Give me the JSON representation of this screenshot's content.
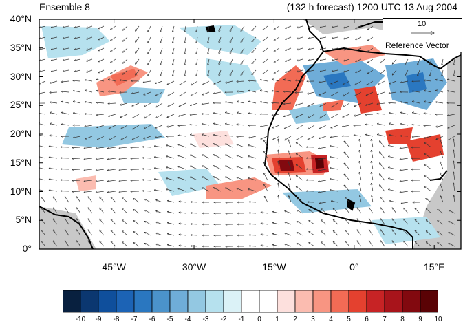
{
  "header": {
    "left_title": "Ensemble 8",
    "right_title": "(132 h forecast) 1200 UTC 13 Aug 2004"
  },
  "axes": {
    "lat_labels": [
      "40°N",
      "35°N",
      "30°N",
      "25°N",
      "20°N",
      "15°N",
      "10°N",
      "5°N",
      "0°"
    ],
    "lat_values": [
      40,
      35,
      30,
      25,
      20,
      15,
      10,
      5,
      0
    ],
    "lon_labels": [
      "45°W",
      "30°W",
      "15°W",
      "0°",
      "15°E"
    ],
    "lon_values": [
      -45,
      -30,
      -15,
      0,
      15
    ],
    "lon_range": [
      -59,
      20
    ],
    "lat_range": [
      0,
      40
    ]
  },
  "reference_vector": {
    "magnitude": "10",
    "label": "Reference Vector"
  },
  "colorbar": {
    "labels": [
      "-10",
      "-9",
      "-8",
      "-7",
      "-6",
      "-5",
      "-4",
      "-3",
      "-2",
      "-1",
      "0",
      "1",
      "2",
      "3",
      "4",
      "5",
      "6",
      "7",
      "8",
      "9",
      "10"
    ],
    "colors": [
      "#08203f",
      "#0b3770",
      "#0f4f9c",
      "#1c63b5",
      "#2a77c0",
      "#4b93cb",
      "#6fadd8",
      "#93c8e2",
      "#b6e1ee",
      "#dbf2f7",
      "#ffffff",
      "#ffffff",
      "#fde0dd",
      "#fbbcb0",
      "#f89582",
      "#f26b55",
      "#e4412f",
      "#c72325",
      "#a8141b",
      "#82090f",
      "#5a0205"
    ],
    "colors_order_note": "blue to red"
  },
  "colors": {
    "land_mask": "#c8c8c8",
    "coastline": "#000000",
    "vector": "#333333"
  }
}
